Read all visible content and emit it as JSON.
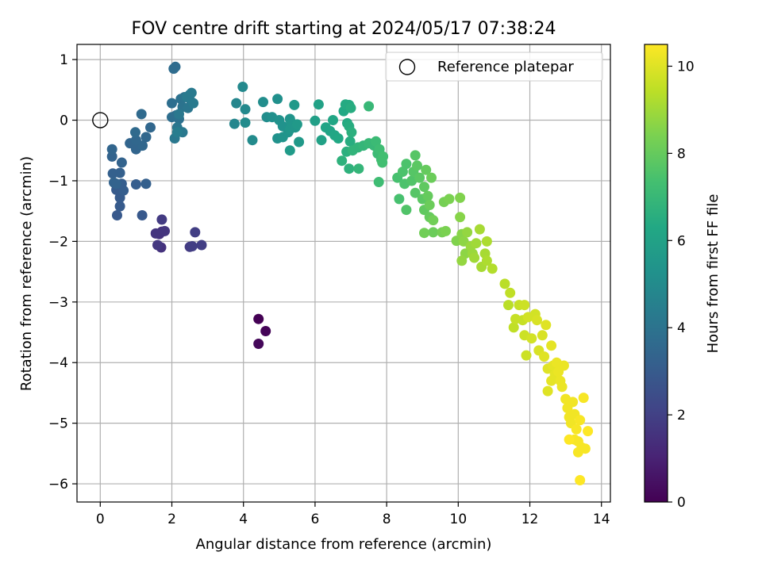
{
  "chart_data": {
    "type": "scatter",
    "title": "FOV centre drift starting at 2024/05/17 07:38:24",
    "xlabel": "Angular distance from reference (arcmin)",
    "ylabel": "Rotation from reference (arcmin)",
    "xlim": [
      -0.65,
      14.25
    ],
    "ylim": [
      -6.3,
      1.25
    ],
    "xticks": [
      0,
      2,
      4,
      6,
      8,
      10,
      12,
      14
    ],
    "yticks": [
      1,
      0,
      -1,
      -2,
      -3,
      -4,
      -5,
      -6
    ],
    "grid": true,
    "legend": {
      "position": "top-right",
      "entries": [
        "Reference platepar"
      ]
    },
    "reference_point": {
      "x": 0,
      "y": 0,
      "label": "Reference platepar"
    },
    "colorbar": {
      "label": "Hours from first FF file",
      "colormap": "viridis",
      "range": [
        0,
        10.5
      ],
      "ticks": [
        0,
        2,
        4,
        6,
        8,
        10
      ]
    },
    "points": [
      [
        4.42,
        -3.28,
        0.0
      ],
      [
        4.62,
        -3.48,
        0.1
      ],
      [
        4.42,
        -3.69,
        0.2
      ],
      [
        1.72,
        -1.84,
        1.4
      ],
      [
        1.65,
        -1.88,
        1.5
      ],
      [
        1.7,
        -2.1,
        1.5
      ],
      [
        1.8,
        -1.83,
        1.6
      ],
      [
        1.55,
        -1.87,
        1.6
      ],
      [
        1.6,
        -2.06,
        1.7
      ],
      [
        1.72,
        -1.64,
        1.8
      ],
      [
        2.5,
        -2.09,
        1.8
      ],
      [
        2.83,
        -2.06,
        1.9
      ],
      [
        2.65,
        -1.85,
        1.9
      ],
      [
        2.57,
        -2.08,
        1.9
      ],
      [
        1.17,
        -1.57,
        2.9
      ],
      [
        0.47,
        -1.57,
        2.9
      ],
      [
        0.55,
        -1.42,
        3.0
      ],
      [
        0.55,
        -1.28,
        3.0
      ],
      [
        0.45,
        -1.15,
        3.0
      ],
      [
        0.65,
        -1.16,
        3.1
      ],
      [
        0.6,
        -1.05,
        3.1
      ],
      [
        1.0,
        -1.06,
        3.1
      ],
      [
        1.28,
        -1.05,
        3.2
      ],
      [
        0.55,
        -0.87,
        3.2
      ],
      [
        0.35,
        -0.88,
        3.2
      ],
      [
        0.38,
        -1.03,
        3.3
      ],
      [
        0.6,
        -0.7,
        3.3
      ],
      [
        0.45,
        -1.05,
        3.3
      ],
      [
        0.33,
        -0.6,
        3.3
      ],
      [
        0.33,
        -0.48,
        3.4
      ],
      [
        0.83,
        -0.38,
        3.4
      ],
      [
        1.0,
        -0.48,
        3.4
      ],
      [
        1.18,
        -0.42,
        3.5
      ],
      [
        1.0,
        -0.33,
        3.5
      ],
      [
        1.28,
        -0.28,
        3.5
      ],
      [
        1.4,
        -0.12,
        3.5
      ],
      [
        0.98,
        -0.2,
        3.6
      ],
      [
        1.15,
        0.1,
        3.6
      ],
      [
        2.05,
        0.85,
        3.7
      ],
      [
        2.1,
        0.88,
        3.7
      ],
      [
        2.0,
        0.28,
        3.8
      ],
      [
        2.0,
        0.05,
        3.8
      ],
      [
        2.12,
        0.08,
        3.8
      ],
      [
        2.2,
        0.02,
        3.9
      ],
      [
        2.25,
        0.35,
        3.9
      ],
      [
        2.35,
        0.38,
        4.0
      ],
      [
        2.5,
        0.42,
        4.0
      ],
      [
        2.3,
        0.22,
        4.0
      ],
      [
        2.45,
        0.2,
        4.1
      ],
      [
        2.55,
        0.3,
        4.1
      ],
      [
        2.15,
        -0.12,
        4.1
      ],
      [
        2.3,
        -0.2,
        4.2
      ],
      [
        2.08,
        -0.3,
        4.2
      ],
      [
        2.2,
        0.1,
        4.2
      ],
      [
        2.42,
        0.38,
        4.3
      ],
      [
        2.55,
        0.45,
        4.3
      ],
      [
        2.6,
        0.28,
        4.3
      ],
      [
        2.15,
        -0.2,
        4.4
      ],
      [
        3.75,
        -0.06,
        4.8
      ],
      [
        3.8,
        0.28,
        4.8
      ],
      [
        4.05,
        0.18,
        4.9
      ],
      [
        3.98,
        0.55,
        4.9
      ],
      [
        4.05,
        -0.04,
        5.0
      ],
      [
        4.25,
        -0.33,
        5.0
      ],
      [
        4.65,
        0.05,
        5.1
      ],
      [
        4.55,
        0.3,
        5.1
      ],
      [
        4.95,
        0.35,
        5.2
      ],
      [
        4.8,
        0.05,
        5.2
      ],
      [
        5.0,
        0.0,
        5.3
      ],
      [
        5.1,
        -0.1,
        5.3
      ],
      [
        4.95,
        -0.3,
        5.3
      ],
      [
        5.1,
        -0.28,
        5.4
      ],
      [
        5.25,
        -0.2,
        5.4
      ],
      [
        5.3,
        0.02,
        5.4
      ],
      [
        5.3,
        -0.15,
        5.5
      ],
      [
        5.35,
        -0.05,
        5.5
      ],
      [
        5.45,
        -0.12,
        5.5
      ],
      [
        5.42,
        0.25,
        5.6
      ],
      [
        5.55,
        -0.36,
        5.6
      ],
      [
        5.5,
        -0.07,
        5.6
      ],
      [
        5.3,
        -0.5,
        5.7
      ],
      [
        6.0,
        -0.01,
        5.9
      ],
      [
        6.1,
        0.26,
        6.0
      ],
      [
        6.18,
        -0.33,
        6.0
      ],
      [
        6.3,
        -0.12,
        6.1
      ],
      [
        6.42,
        -0.18,
        6.1
      ],
      [
        6.5,
        0.0,
        6.2
      ],
      [
        6.55,
        -0.25,
        6.2
      ],
      [
        6.65,
        -0.3,
        6.3
      ],
      [
        6.8,
        0.15,
        6.3
      ],
      [
        6.85,
        0.26,
        6.4
      ],
      [
        6.95,
        0.25,
        6.4
      ],
      [
        6.9,
        -0.05,
        6.4
      ],
      [
        6.95,
        -0.1,
        6.5
      ],
      [
        7.0,
        0.2,
        6.5
      ],
      [
        6.98,
        -0.35,
        6.5
      ],
      [
        7.02,
        -0.2,
        6.6
      ],
      [
        6.88,
        -0.52,
        6.6
      ],
      [
        6.75,
        -0.67,
        6.7
      ],
      [
        6.95,
        -0.8,
        6.7
      ],
      [
        7.05,
        -0.5,
        6.8
      ],
      [
        7.2,
        -0.45,
        6.8
      ],
      [
        7.22,
        -0.8,
        6.9
      ],
      [
        7.35,
        -0.42,
        6.9
      ],
      [
        7.5,
        0.23,
        7.0
      ],
      [
        7.5,
        -0.38,
        7.0
      ],
      [
        7.65,
        -0.42,
        7.0
      ],
      [
        7.7,
        -0.35,
        7.1
      ],
      [
        7.75,
        -0.55,
        7.1
      ],
      [
        7.8,
        -0.48,
        7.2
      ],
      [
        7.78,
        -1.02,
        7.2
      ],
      [
        7.85,
        -0.65,
        7.2
      ],
      [
        7.9,
        -0.6,
        7.3
      ],
      [
        7.88,
        -0.7,
        7.3
      ],
      [
        8.3,
        -0.95,
        7.4
      ],
      [
        8.35,
        -1.3,
        7.4
      ],
      [
        8.45,
        -0.85,
        7.5
      ],
      [
        8.5,
        -1.05,
        7.5
      ],
      [
        8.55,
        -0.72,
        7.5
      ],
      [
        8.55,
        -1.48,
        7.6
      ],
      [
        8.7,
        -1.0,
        7.6
      ],
      [
        8.75,
        -0.85,
        7.7
      ],
      [
        8.8,
        -1.2,
        7.7
      ],
      [
        8.8,
        -0.58,
        7.7
      ],
      [
        8.85,
        -0.75,
        7.8
      ],
      [
        8.92,
        -0.95,
        7.8
      ],
      [
        9.0,
        -1.3,
        7.8
      ],
      [
        9.05,
        -1.48,
        7.9
      ],
      [
        9.05,
        -1.1,
        7.9
      ],
      [
        9.1,
        -0.82,
        8.0
      ],
      [
        9.15,
        -1.25,
        8.0
      ],
      [
        9.2,
        -1.6,
        8.0
      ],
      [
        9.25,
        -0.95,
        8.1
      ],
      [
        9.2,
        -1.4,
        8.1
      ],
      [
        9.3,
        -1.85,
        8.1
      ],
      [
        9.3,
        -1.65,
        8.2
      ],
      [
        9.05,
        -1.86,
        8.2
      ],
      [
        9.55,
        -1.85,
        8.3
      ],
      [
        9.6,
        -1.35,
        8.3
      ],
      [
        9.65,
        -1.83,
        8.4
      ],
      [
        9.75,
        -1.3,
        8.4
      ],
      [
        9.95,
        -1.99,
        8.5
      ],
      [
        10.05,
        -1.28,
        8.5
      ],
      [
        10.05,
        -1.6,
        8.6
      ],
      [
        10.1,
        -1.88,
        8.6
      ],
      [
        10.15,
        -2.0,
        8.7
      ],
      [
        10.2,
        -2.2,
        8.7
      ],
      [
        10.1,
        -2.32,
        8.8
      ],
      [
        10.25,
        -1.85,
        8.8
      ],
      [
        10.35,
        -2.08,
        8.9
      ],
      [
        10.4,
        -2.2,
        8.9
      ],
      [
        10.45,
        -2.27,
        9.0
      ],
      [
        10.5,
        -2.03,
        9.0
      ],
      [
        10.6,
        -1.8,
        9.1
      ],
      [
        10.65,
        -2.42,
        9.1
      ],
      [
        10.75,
        -2.2,
        9.1
      ],
      [
        10.8,
        -2.32,
        9.2
      ],
      [
        10.8,
        -2.0,
        9.2
      ],
      [
        10.95,
        -2.45,
        9.3
      ],
      [
        11.3,
        -2.7,
        9.4
      ],
      [
        11.4,
        -3.05,
        9.4
      ],
      [
        11.45,
        -2.85,
        9.5
      ],
      [
        11.55,
        -3.42,
        9.5
      ],
      [
        11.6,
        -3.28,
        9.6
      ],
      [
        11.7,
        -3.05,
        9.6
      ],
      [
        11.8,
        -3.3,
        9.6
      ],
      [
        11.85,
        -3.05,
        9.7
      ],
      [
        11.85,
        -3.55,
        9.7
      ],
      [
        11.9,
        -3.88,
        9.7
      ],
      [
        11.95,
        -3.25,
        9.8
      ],
      [
        12.05,
        -3.6,
        9.8
      ],
      [
        12.15,
        -3.2,
        9.8
      ],
      [
        12.2,
        -3.3,
        9.9
      ],
      [
        12.25,
        -3.8,
        9.9
      ],
      [
        12.35,
        -3.55,
        9.9
      ],
      [
        12.4,
        -3.9,
        10.0
      ],
      [
        12.45,
        -3.38,
        10.0
      ],
      [
        12.5,
        -4.1,
        10.0
      ],
      [
        12.5,
        -4.47,
        10.0
      ],
      [
        12.6,
        -3.72,
        10.1
      ],
      [
        12.6,
        -4.3,
        10.1
      ],
      [
        12.65,
        -4.05,
        10.1
      ],
      [
        12.7,
        -4.2,
        10.1
      ],
      [
        12.75,
        -4.0,
        10.2
      ],
      [
        12.8,
        -4.15,
        10.2
      ],
      [
        12.85,
        -4.3,
        10.2
      ],
      [
        12.9,
        -4.4,
        10.2
      ],
      [
        12.95,
        -4.05,
        10.2
      ],
      [
        13.0,
        -4.6,
        10.3
      ],
      [
        13.05,
        -4.75,
        10.3
      ],
      [
        13.1,
        -4.9,
        10.3
      ],
      [
        13.15,
        -5.0,
        10.3
      ],
      [
        13.2,
        -4.65,
        10.3
      ],
      [
        13.25,
        -4.85,
        10.3
      ],
      [
        13.3,
        -5.1,
        10.4
      ],
      [
        13.35,
        -5.3,
        10.4
      ],
      [
        13.35,
        -5.48,
        10.4
      ],
      [
        13.4,
        -4.95,
        10.4
      ],
      [
        13.45,
        -5.4,
        10.4
      ],
      [
        13.5,
        -4.58,
        10.4
      ],
      [
        13.55,
        -5.42,
        10.4
      ],
      [
        13.25,
        -5.27,
        10.4
      ],
      [
        13.62,
        -5.13,
        10.5
      ],
      [
        13.1,
        -5.27,
        10.5
      ],
      [
        13.4,
        -5.94,
        10.5
      ]
    ]
  }
}
